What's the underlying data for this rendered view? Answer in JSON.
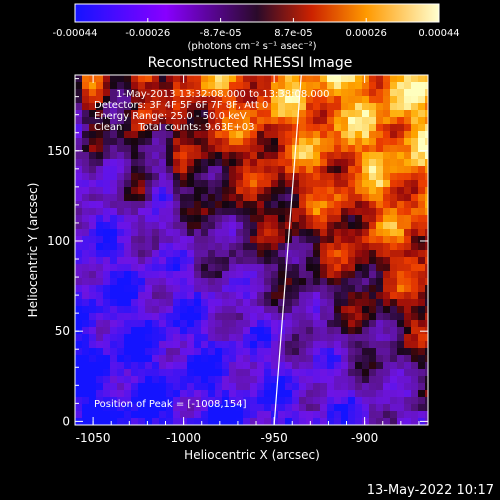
{
  "colorbar": {
    "ticks": [
      "-0.00044",
      "-0.00026",
      "-8.7e-05",
      "8.7e-05",
      "0.00026",
      "0.00044"
    ],
    "unit_label": "(photons cm⁻² s⁻¹ asec⁻²)",
    "range": [
      -0.00044,
      0.00044
    ]
  },
  "chart_data": {
    "type": "heatmap",
    "title": "Reconstructed RHESSI Image",
    "xlabel": "Heliocentric X (arcsec)",
    "ylabel": "Heliocentric Y (arcsec)",
    "xlim": [
      -1060,
      -865
    ],
    "ylim": [
      -2,
      192
    ],
    "x_ticks": [
      "-1050",
      "-1000",
      "-950",
      "-900"
    ],
    "x_tick_values": [
      -1050,
      -1000,
      -950,
      -900
    ],
    "y_ticks": [
      "0",
      "50",
      "100",
      "150"
    ],
    "y_tick_values": [
      0,
      50,
      100,
      150
    ],
    "annotations": [
      "1-May-2013 13:32:08.000 to 13:38:08.000",
      "Detectors: 3F 4F 5F 6F 7F 8F, Att 0",
      "Energy Range: 25.0 - 50.0 keV",
      "Clean     Total counts: 9.63E+03"
    ],
    "peak_label": "Position of Peak = [-1008,154]",
    "peak_position": [
      -1008,
      154
    ],
    "limb_line": [
      [
        -950,
        -2
      ],
      [
        -935,
        192
      ]
    ],
    "colormap": "rhessi-diverging"
  },
  "footer": {
    "timestamp": "13-May-2022 10:17"
  }
}
